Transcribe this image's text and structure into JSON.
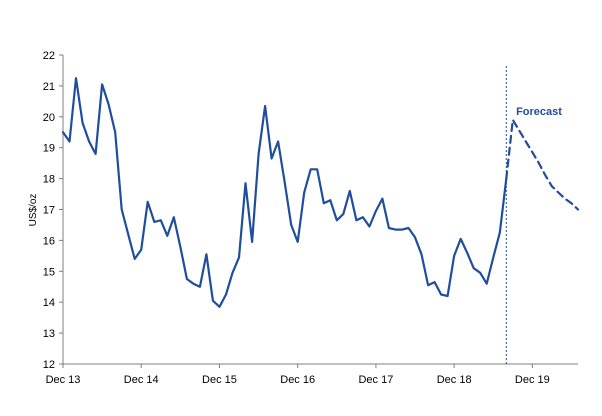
{
  "chart_data": {
    "type": "line",
    "title": "",
    "xlabel": "",
    "ylabel": "US$/oz",
    "ylim": [
      12,
      22
    ],
    "yticks": [
      12,
      13,
      14,
      15,
      16,
      17,
      18,
      19,
      20,
      21,
      22
    ],
    "xlim": [
      0,
      79
    ],
    "xticks": [
      {
        "label": "Dec 13",
        "x": 0
      },
      {
        "label": "Dec 14",
        "x": 12
      },
      {
        "label": "Dec 15",
        "x": 24
      },
      {
        "label": "Dec 16",
        "x": 36
      },
      {
        "label": "Dec 17",
        "x": 48
      },
      {
        "label": "Dec 18",
        "x": 60
      },
      {
        "label": "Dec 19",
        "x": 72
      }
    ],
    "grid": false,
    "legend": "none",
    "colors": {
      "line": "#1f4e9c",
      "axis": "#7f7f7f"
    },
    "series": [
      {
        "style": "solid",
        "x": [
          0,
          1,
          2,
          3,
          4,
          5,
          6,
          7,
          8,
          9,
          10,
          11,
          12,
          13,
          14,
          15,
          16,
          17,
          18,
          19,
          20,
          21,
          22,
          23,
          24,
          25,
          26,
          27,
          28,
          29,
          30,
          31,
          32,
          33,
          34,
          35,
          36,
          37,
          38,
          39,
          40,
          41,
          42,
          43,
          44,
          45,
          46,
          47,
          48,
          49,
          50,
          51,
          52,
          53,
          54,
          55,
          56,
          57,
          58,
          59,
          60,
          61,
          62,
          63,
          64,
          65,
          66,
          67,
          68
        ],
        "values": [
          19.5,
          19.2,
          21.25,
          19.8,
          19.2,
          18.8,
          21.05,
          20.4,
          19.5,
          17.0,
          16.2,
          15.4,
          15.7,
          17.25,
          16.6,
          16.65,
          16.15,
          16.75,
          15.8,
          14.75,
          14.6,
          14.5,
          15.55,
          14.05,
          13.85,
          14.25,
          14.95,
          15.45,
          17.85,
          15.95,
          18.8,
          20.35,
          18.65,
          19.2,
          17.9,
          16.5,
          15.95,
          17.55,
          18.3,
          18.3,
          17.2,
          17.3,
          16.65,
          16.85,
          17.6,
          16.65,
          16.75,
          16.45,
          16.95,
          17.35,
          16.4,
          16.35,
          16.35,
          16.4,
          16.1,
          15.55,
          14.55,
          14.65,
          14.25,
          14.2,
          15.5,
          16.05,
          15.6,
          15.1,
          14.95,
          14.6,
          15.45,
          16.25,
          18.0
        ]
      },
      {
        "style": "dashed",
        "x": [
          68,
          69,
          70,
          71,
          72,
          73,
          74,
          75,
          76,
          77,
          78,
          79
        ],
        "values": [
          18.0,
          19.9,
          19.55,
          19.2,
          18.85,
          18.5,
          18.1,
          17.75,
          17.55,
          17.35,
          17.2,
          17.0
        ]
      }
    ],
    "forecast_line_x": 68.0,
    "annotations": [
      {
        "text": "Forecast",
        "x": 69.5,
        "y": 20.0
      }
    ]
  }
}
